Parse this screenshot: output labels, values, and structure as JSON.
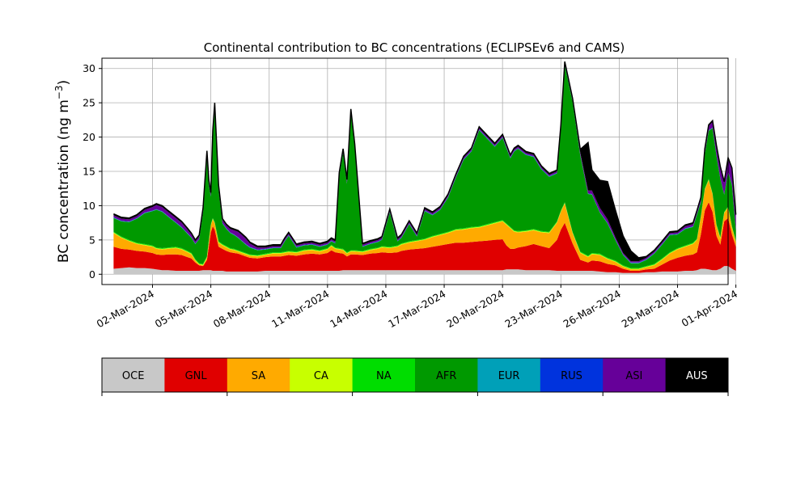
{
  "chart_data": {
    "type": "area",
    "stacked": true,
    "title": "Continental contribution to BC concentrations (ECLIPSEv6 and CAMS)",
    "ylabel": "BC concentration (ng m",
    "ylabel_sup": "−3",
    "ylabel_close": ")",
    "ylim": [
      -1.5,
      31.5
    ],
    "yticks": [
      0,
      5,
      10,
      15,
      20,
      25,
      30
    ],
    "xlim_days": [
      -1.6,
      30.6
    ],
    "grid": true,
    "xticks": [
      {
        "day": 1,
        "label": "02-Mar-2024"
      },
      {
        "day": 4,
        "label": "05-Mar-2024"
      },
      {
        "day": 7,
        "label": "08-Mar-2024"
      },
      {
        "day": 10,
        "label": "11-Mar-2024"
      },
      {
        "day": 13,
        "label": "14-Mar-2024"
      },
      {
        "day": 16,
        "label": "17-Mar-2024"
      },
      {
        "day": 19,
        "label": "20-Mar-2024"
      },
      {
        "day": 22,
        "label": "23-Mar-2024"
      },
      {
        "day": 25,
        "label": "26-Mar-2024"
      },
      {
        "day": 28,
        "label": "29-Mar-2024"
      },
      {
        "day": 31,
        "label": "01-Apr-2024"
      }
    ],
    "legend_position": "bottom",
    "series": [
      {
        "name": "OCE",
        "color": "#c8c8c8"
      },
      {
        "name": "GNL",
        "color": "#e00000"
      },
      {
        "name": "SA",
        "color": "#ffaa00"
      },
      {
        "name": "CA",
        "color": "#c8ff00"
      },
      {
        "name": "NA",
        "color": "#00dd00"
      },
      {
        "name": "AFR",
        "color": "#009900"
      },
      {
        "name": "EUR",
        "color": "#00a0b8"
      },
      {
        "name": "RUS",
        "color": "#0033dd"
      },
      {
        "name": "ASI",
        "color": "#660099"
      },
      {
        "name": "AUS",
        "color": "#000000"
      }
    ],
    "x": [
      -1.0,
      -0.6,
      -0.2,
      0.2,
      0.6,
      1.0,
      1.2,
      1.5,
      1.8,
      2.2,
      2.5,
      2.8,
      3.0,
      3.2,
      3.4,
      3.6,
      3.8,
      3.9,
      4.0,
      4.1,
      4.2,
      4.4,
      4.6,
      4.8,
      5.0,
      5.2,
      5.4,
      5.6,
      5.8,
      6.0,
      6.4,
      6.8,
      7.2,
      7.6,
      7.8,
      8.0,
      8.4,
      8.8,
      9.2,
      9.6,
      10.0,
      10.2,
      10.4,
      10.6,
      10.8,
      11.0,
      11.2,
      11.4,
      11.8,
      12.2,
      12.6,
      12.8,
      13.2,
      13.6,
      13.8,
      14.2,
      14.6,
      15.0,
      15.4,
      15.8,
      16.2,
      16.6,
      17.0,
      17.4,
      17.8,
      18.2,
      18.6,
      19.0,
      19.2,
      19.4,
      19.6,
      19.8,
      20.2,
      20.6,
      21.0,
      21.4,
      21.8,
      22.0,
      22.2,
      22.6,
      23.0,
      23.4,
      23.6,
      24.0,
      24.4,
      24.8,
      25.2,
      25.6,
      26.0,
      26.4,
      26.8,
      27.2,
      27.6,
      28.0,
      28.4,
      28.8,
      29.0,
      29.2,
      29.4,
      29.6,
      29.8,
      30.0,
      30.2,
      30.4,
      30.6,
      30.8,
      31.0
    ],
    "values": {
      "OCE": [
        0.8,
        0.9,
        1.0,
        0.9,
        0.9,
        0.8,
        0.7,
        0.6,
        0.6,
        0.5,
        0.5,
        0.5,
        0.5,
        0.5,
        0.5,
        0.6,
        0.6,
        0.6,
        0.6,
        0.5,
        0.5,
        0.5,
        0.5,
        0.4,
        0.4,
        0.4,
        0.4,
        0.4,
        0.4,
        0.4,
        0.4,
        0.5,
        0.5,
        0.5,
        0.5,
        0.5,
        0.5,
        0.5,
        0.5,
        0.5,
        0.5,
        0.5,
        0.5,
        0.5,
        0.6,
        0.6,
        0.6,
        0.6,
        0.6,
        0.6,
        0.6,
        0.6,
        0.6,
        0.6,
        0.6,
        0.6,
        0.6,
        0.6,
        0.6,
        0.6,
        0.6,
        0.6,
        0.6,
        0.6,
        0.6,
        0.6,
        0.6,
        0.6,
        0.7,
        0.7,
        0.7,
        0.7,
        0.6,
        0.6,
        0.6,
        0.6,
        0.5,
        0.5,
        0.5,
        0.5,
        0.5,
        0.5,
        0.5,
        0.4,
        0.3,
        0.3,
        0.2,
        0.2,
        0.2,
        0.3,
        0.3,
        0.4,
        0.4,
        0.4,
        0.5,
        0.5,
        0.6,
        0.8,
        0.8,
        0.7,
        0.6,
        0.6,
        0.8,
        1.2,
        1.2,
        0.8,
        0.5
      ],
      "GNL": [
        3.2,
        2.8,
        2.6,
        2.5,
        2.4,
        2.3,
        2.2,
        2.2,
        2.3,
        2.4,
        2.3,
        2.0,
        1.8,
        1.2,
        0.8,
        0.6,
        1.5,
        3.5,
        5.5,
        6.5,
        6.0,
        3.5,
        3.2,
        3.0,
        2.8,
        2.7,
        2.6,
        2.4,
        2.2,
        2.0,
        1.9,
        2.0,
        2.1,
        2.1,
        2.2,
        2.3,
        2.2,
        2.4,
        2.5,
        2.4,
        2.6,
        3.0,
        2.7,
        2.6,
        2.4,
        2.0,
        2.3,
        2.3,
        2.2,
        2.4,
        2.5,
        2.6,
        2.5,
        2.6,
        2.8,
        3.0,
        3.1,
        3.2,
        3.4,
        3.6,
        3.8,
        4.0,
        4.0,
        4.1,
        4.2,
        4.3,
        4.4,
        4.5,
        3.5,
        3.0,
        3.0,
        3.2,
        3.5,
        3.8,
        3.5,
        3.2,
        4.5,
        6.0,
        7.0,
        4.0,
        1.6,
        1.2,
        1.5,
        1.5,
        1.2,
        1.0,
        0.6,
        0.3,
        0.3,
        0.4,
        0.5,
        1.0,
        1.6,
        2.0,
        2.2,
        2.4,
        2.6,
        5.0,
        8.5,
        9.8,
        8.5,
        5.0,
        3.5,
        6.5,
        7.0,
        5.0,
        3.5
      ],
      "SA": [
        2.0,
        1.6,
        1.2,
        1.0,
        0.9,
        0.9,
        0.8,
        0.8,
        0.8,
        0.9,
        0.8,
        0.7,
        0.6,
        0.3,
        0.1,
        0.1,
        0.3,
        0.7,
        1.0,
        1.0,
        0.9,
        0.6,
        0.5,
        0.5,
        0.4,
        0.4,
        0.3,
        0.3,
        0.3,
        0.3,
        0.3,
        0.3,
        0.4,
        0.4,
        0.4,
        0.4,
        0.4,
        0.5,
        0.5,
        0.4,
        0.5,
        0.6,
        0.5,
        0.5,
        0.5,
        0.4,
        0.4,
        0.4,
        0.4,
        0.5,
        0.6,
        0.7,
        0.7,
        0.8,
        0.9,
        1.0,
        1.1,
        1.2,
        1.4,
        1.5,
        1.6,
        1.8,
        1.9,
        2.0,
        2.0,
        2.2,
        2.4,
        2.6,
        3.0,
        3.0,
        2.5,
        2.2,
        2.1,
        2.0,
        2.0,
        2.2,
        2.5,
        2.6,
        2.8,
        1.5,
        1.0,
        0.8,
        0.9,
        0.9,
        0.7,
        0.5,
        0.3,
        0.2,
        0.2,
        0.3,
        0.5,
        0.7,
        1.0,
        1.2,
        1.3,
        1.5,
        1.8,
        2.5,
        3.0,
        3.2,
        2.5,
        1.5,
        0.9,
        1.2,
        1.5,
        1.0,
        0.7
      ],
      "CA": [
        0.1,
        0.1,
        0.1,
        0.1,
        0.1,
        0.1,
        0.1,
        0.1,
        0.1,
        0.1,
        0.1,
        0.1,
        0.1,
        0.1,
        0.1,
        0.1,
        0.1,
        0.1,
        0.1,
        0.1,
        0.1,
        0.1,
        0.1,
        0.1,
        0.1,
        0.1,
        0.1,
        0.1,
        0.1,
        0.1,
        0.1,
        0.1,
        0.1,
        0.1,
        0.1,
        0.1,
        0.1,
        0.1,
        0.1,
        0.1,
        0.1,
        0.1,
        0.1,
        0.1,
        0.1,
        0.1,
        0.1,
        0.1,
        0.1,
        0.1,
        0.1,
        0.1,
        0.1,
        0.1,
        0.1,
        0.1,
        0.1,
        0.1,
        0.1,
        0.1,
        0.1,
        0.1,
        0.1,
        0.1,
        0.1,
        0.1,
        0.1,
        0.1,
        0.1,
        0.1,
        0.1,
        0.1,
        0.1,
        0.1,
        0.1,
        0.1,
        0.1,
        0.1,
        0.1,
        0.1,
        0.1,
        0.1,
        0.1,
        0.1,
        0.1,
        0.1,
        0.1,
        0.1,
        0.1,
        0.1,
        0.1,
        0.1,
        0.1,
        0.1,
        0.1,
        0.1,
        0.1,
        0.1,
        0.1,
        0.1,
        0.1,
        0.1,
        0.1,
        0.1,
        0.1,
        0.1,
        0.1
      ],
      "NA": [
        0.1,
        0.1,
        0.1,
        0.1,
        0.1,
        0.1,
        0.1,
        0.1,
        0.1,
        0.1,
        0.1,
        0.1,
        0.1,
        0.1,
        0.1,
        0.1,
        0.1,
        0.1,
        0.1,
        0.1,
        0.1,
        0.1,
        0.1,
        0.1,
        0.1,
        0.1,
        0.1,
        0.1,
        0.1,
        0.1,
        0.1,
        0.1,
        0.1,
        0.1,
        0.1,
        0.1,
        0.1,
        0.1,
        0.1,
        0.1,
        0.1,
        0.1,
        0.1,
        0.1,
        0.1,
        0.1,
        0.1,
        0.1,
        0.1,
        0.1,
        0.1,
        0.1,
        0.1,
        0.1,
        0.1,
        0.1,
        0.1,
        0.1,
        0.1,
        0.1,
        0.1,
        0.1,
        0.1,
        0.1,
        0.1,
        0.1,
        0.1,
        0.1,
        0.1,
        0.1,
        0.1,
        0.1,
        0.1,
        0.1,
        0.1,
        0.1,
        0.1,
        0.1,
        0.1,
        0.1,
        0.1,
        0.1,
        0.1,
        0.1,
        0.1,
        0.1,
        0.1,
        0.1,
        0.1,
        0.1,
        0.1,
        0.1,
        0.1,
        0.1,
        0.1,
        0.1,
        0.1,
        0.1,
        0.1,
        0.1,
        0.1,
        0.1,
        0.1,
        0.1,
        0.1,
        0.1,
        0.1
      ],
      "AFR": [
        2.0,
        2.2,
        2.6,
        3.5,
        4.5,
        5.0,
        5.5,
        5.3,
        4.5,
        3.5,
        3.0,
        2.5,
        2.2,
        2.2,
        3.5,
        7.5,
        14.5,
        8.0,
        4.0,
        12.0,
        16.5,
        7.5,
        3.0,
        2.5,
        2.2,
        2.0,
        1.8,
        1.5,
        1.2,
        1.0,
        0.7,
        0.6,
        0.6,
        0.6,
        1.5,
        2.2,
        0.6,
        0.6,
        0.6,
        0.5,
        0.5,
        0.5,
        0.6,
        10.5,
        14.0,
        10.0,
        20.0,
        15.0,
        0.6,
        0.7,
        0.8,
        0.9,
        5.0,
        0.6,
        0.8,
        2.5,
        0.5,
        4.0,
        3.0,
        3.5,
        5.0,
        7.5,
        10.0,
        11.0,
        14.0,
        12.5,
        11.0,
        12.0,
        11.0,
        10.0,
        11.5,
        12.0,
        11.0,
        10.5,
        9.0,
        8.0,
        7.0,
        12.0,
        20.0,
        19.0,
        14.0,
        9.0,
        8.5,
        6.0,
        5.0,
        3.0,
        1.5,
        0.7,
        0.7,
        0.9,
        1.5,
        2.0,
        2.5,
        2.0,
        2.4,
        2.3,
        3.5,
        2.0,
        5.0,
        7.0,
        9.5,
        10.0,
        8.5,
        2.5,
        5.0,
        6.0,
        1.5
      ],
      "EUR": [
        0.05,
        0.05,
        0.05,
        0.05,
        0.05,
        0.05,
        0.05,
        0.05,
        0.05,
        0.05,
        0.05,
        0.05,
        0.05,
        0.05,
        0.05,
        0.05,
        0.05,
        0.05,
        0.05,
        0.05,
        0.05,
        0.05,
        0.05,
        0.05,
        0.05,
        0.05,
        0.05,
        0.05,
        0.05,
        0.05,
        0.05,
        0.05,
        0.05,
        0.05,
        0.05,
        0.05,
        0.05,
        0.05,
        0.05,
        0.05,
        0.05,
        0.05,
        0.05,
        0.05,
        0.05,
        0.05,
        0.05,
        0.05,
        0.05,
        0.05,
        0.05,
        0.05,
        0.05,
        0.05,
        0.05,
        0.05,
        0.05,
        0.05,
        0.05,
        0.05,
        0.05,
        0.05,
        0.05,
        0.05,
        0.05,
        0.05,
        0.05,
        0.05,
        0.05,
        0.05,
        0.05,
        0.05,
        0.05,
        0.05,
        0.05,
        0.05,
        0.05,
        0.05,
        0.05,
        0.05,
        0.05,
        0.05,
        0.05,
        0.05,
        0.05,
        0.05,
        0.05,
        0.05,
        0.05,
        0.05,
        0.05,
        0.05,
        0.05,
        0.05,
        0.05,
        0.05,
        0.05,
        0.05,
        0.05,
        0.05,
        0.05,
        0.05,
        0.05,
        0.05,
        0.05,
        0.05,
        0.05
      ],
      "RUS": [
        0.05,
        0.05,
        0.05,
        0.05,
        0.05,
        0.05,
        0.05,
        0.05,
        0.05,
        0.05,
        0.05,
        0.05,
        0.05,
        0.05,
        0.05,
        0.05,
        0.05,
        0.05,
        0.05,
        0.05,
        0.05,
        0.05,
        0.05,
        0.05,
        0.05,
        0.05,
        0.05,
        0.05,
        0.05,
        0.05,
        0.05,
        0.05,
        0.05,
        0.05,
        0.05,
        0.05,
        0.05,
        0.05,
        0.05,
        0.05,
        0.05,
        0.05,
        0.05,
        0.05,
        0.05,
        0.05,
        0.05,
        0.05,
        0.05,
        0.05,
        0.05,
        0.05,
        0.05,
        0.05,
        0.05,
        0.05,
        0.05,
        0.05,
        0.05,
        0.05,
        0.05,
        0.05,
        0.05,
        0.05,
        0.05,
        0.05,
        0.05,
        0.05,
        0.05,
        0.05,
        0.05,
        0.05,
        0.05,
        0.05,
        0.05,
        0.05,
        0.05,
        0.05,
        0.05,
        0.05,
        0.05,
        0.05,
        0.05,
        0.05,
        0.05,
        0.05,
        0.05,
        0.05,
        0.05,
        0.05,
        0.05,
        0.05,
        0.05,
        0.05,
        0.05,
        0.05,
        0.05,
        0.05,
        0.05,
        0.05,
        0.05,
        0.05,
        0.05,
        0.05,
        0.05,
        0.05,
        0.05
      ],
      "ASI": [
        0.3,
        0.3,
        0.3,
        0.3,
        0.4,
        0.5,
        0.6,
        0.6,
        0.6,
        0.6,
        0.6,
        0.5,
        0.4,
        0.3,
        0.3,
        0.4,
        0.6,
        0.4,
        0.3,
        0.4,
        0.6,
        0.4,
        0.4,
        0.4,
        0.5,
        0.6,
        0.8,
        0.8,
        0.8,
        0.5,
        0.3,
        0.2,
        0.2,
        0.2,
        0.2,
        0.2,
        0.2,
        0.2,
        0.2,
        0.2,
        0.2,
        0.2,
        0.2,
        0.2,
        0.3,
        0.3,
        0.3,
        0.2,
        0.2,
        0.2,
        0.2,
        0.2,
        0.2,
        0.2,
        0.2,
        0.2,
        0.2,
        0.2,
        0.2,
        0.2,
        0.2,
        0.2,
        0.2,
        0.2,
        0.2,
        0.2,
        0.2,
        0.2,
        0.2,
        0.2,
        0.2,
        0.2,
        0.2,
        0.2,
        0.2,
        0.2,
        0.2,
        0.2,
        0.2,
        0.2,
        0.3,
        0.4,
        0.5,
        0.6,
        0.5,
        0.3,
        0.2,
        0.2,
        0.2,
        0.2,
        0.2,
        0.2,
        0.2,
        0.2,
        0.3,
        0.3,
        0.3,
        0.4,
        0.5,
        0.6,
        0.8,
        1.2,
        1.5,
        1.6,
        1.8,
        2.2,
        2.0
      ],
      "AUS": [
        0.2,
        0.2,
        0.2,
        0.2,
        0.2,
        0.2,
        0.2,
        0.2,
        0.2,
        0.2,
        0.2,
        0.2,
        0.2,
        0.2,
        0.2,
        0.2,
        0.2,
        0.2,
        0.2,
        0.2,
        0.2,
        0.2,
        0.2,
        0.2,
        0.2,
        0.2,
        0.2,
        0.2,
        0.2,
        0.2,
        0.2,
        0.2,
        0.2,
        0.2,
        0.2,
        0.2,
        0.2,
        0.2,
        0.2,
        0.2,
        0.2,
        0.2,
        0.2,
        0.2,
        0.2,
        0.2,
        0.2,
        0.2,
        0.2,
        0.2,
        0.2,
        0.2,
        0.2,
        0.2,
        0.2,
        0.2,
        0.2,
        0.2,
        0.2,
        0.2,
        0.2,
        0.2,
        0.2,
        0.2,
        0.2,
        0.2,
        0.2,
        0.2,
        0.2,
        0.2,
        0.2,
        0.2,
        0.2,
        0.2,
        0.2,
        0.2,
        0.2,
        0.2,
        0.2,
        0.2,
        0.5,
        7.0,
        3.0,
        4.0,
        5.5,
        4.0,
        2.5,
        1.5,
        0.5,
        0.2,
        0.2,
        0.2,
        0.2,
        0.2,
        0.2,
        0.2,
        0.2,
        0.2,
        0.2,
        0.2,
        0.2,
        0.2,
        0.2,
        0.2,
        0.2,
        0.2,
        0.2
      ]
    }
  }
}
